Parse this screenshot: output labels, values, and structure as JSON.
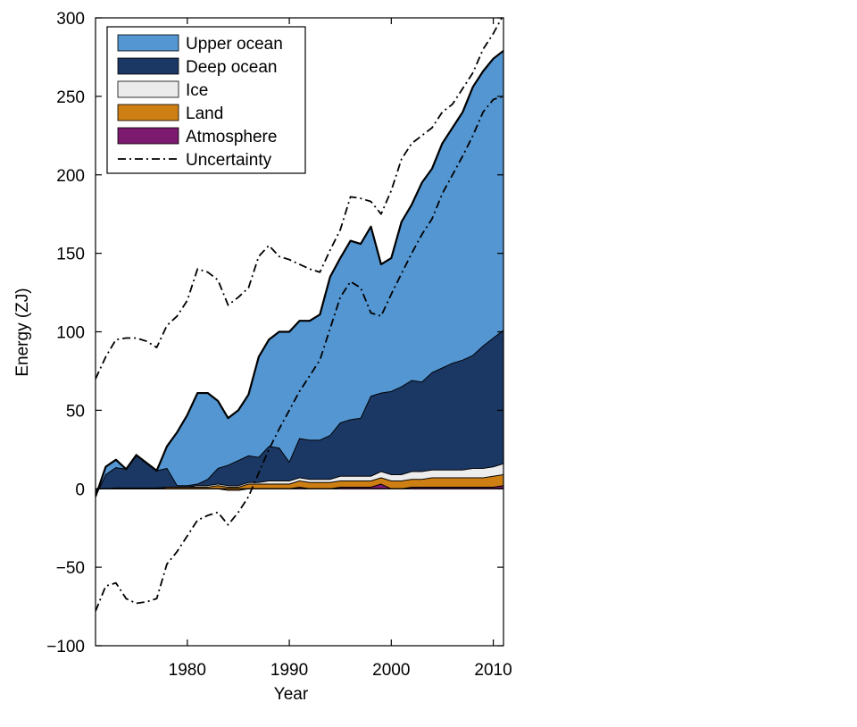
{
  "chart_data": {
    "type": "area",
    "stacked": true,
    "xlabel": "Year",
    "ylabel": "Energy (ZJ)",
    "xlim": [
      1971,
      2011
    ],
    "ylim": [
      -100,
      300
    ],
    "x_ticks": [
      1980,
      1990,
      2000,
      2010
    ],
    "y_ticks": [
      -100,
      -50,
      0,
      50,
      100,
      150,
      200,
      250,
      300
    ],
    "x_tick_labels": [
      "1980",
      "1990",
      "2000",
      "2010"
    ],
    "y_tick_labels": [
      "−100",
      "−50",
      "0",
      "50",
      "100",
      "150",
      "200",
      "250",
      "300"
    ],
    "grid": false,
    "legend_position": "top-left",
    "x": [
      1971,
      1972,
      1973,
      1974,
      1975,
      1976,
      1977,
      1978,
      1979,
      1980,
      1981,
      1982,
      1983,
      1984,
      1985,
      1986,
      1987,
      1988,
      1989,
      1990,
      1991,
      1992,
      1993,
      1994,
      1995,
      1996,
      1997,
      1998,
      1999,
      2000,
      2001,
      2002,
      2003,
      2004,
      2005,
      2006,
      2007,
      2008,
      2009,
      2010,
      2011
    ],
    "series": [
      {
        "name": "Atmosphere",
        "color": "#7b1a6e",
        "values": [
          0,
          0,
          0,
          0,
          0,
          0,
          0,
          0,
          0,
          0,
          0,
          0,
          0,
          -1,
          -1,
          0,
          0,
          0,
          0,
          0,
          1,
          0,
          0,
          0,
          1,
          1,
          1,
          1,
          3,
          0,
          0,
          1,
          1,
          1,
          1,
          1,
          1,
          1,
          1,
          1,
          2
        ]
      },
      {
        "name": "Land",
        "color": "#cd7f14",
        "values": [
          0,
          0,
          0.5,
          0.5,
          0.5,
          0.5,
          0.5,
          1,
          1,
          1,
          1,
          1,
          2,
          2,
          2,
          3,
          3,
          3,
          3,
          3,
          4,
          4,
          4,
          4,
          4,
          4,
          4,
          4,
          4,
          5,
          5,
          5,
          5,
          6,
          6,
          6,
          6,
          6,
          6,
          7,
          7
        ]
      },
      {
        "name": "Ice",
        "color": "#ececec",
        "values": [
          0,
          0,
          0,
          0,
          0,
          0,
          0,
          0,
          0,
          0,
          1,
          1,
          1,
          1,
          1,
          1,
          1,
          2,
          2,
          2,
          2,
          2,
          2,
          2,
          3,
          3,
          3,
          3,
          4,
          4,
          4,
          5,
          5,
          5,
          5,
          5,
          5,
          6,
          6,
          6,
          7
        ]
      },
      {
        "name": "Deep ocean",
        "color": "#1b3764",
        "values": [
          -5,
          9,
          13,
          12,
          21,
          16,
          11,
          12,
          1,
          1,
          1,
          4,
          10,
          13,
          16,
          17,
          16,
          22,
          21,
          12,
          25,
          25,
          25,
          28,
          34,
          36,
          37,
          51,
          50,
          53,
          56,
          58,
          57,
          62,
          65,
          68,
          70,
          72,
          78,
          82,
          85
        ]
      },
      {
        "name": "Upper ocean",
        "color": "#5496d1",
        "values": [
          0,
          5,
          5,
          0,
          0,
          0,
          0,
          14,
          34,
          45,
          58,
          55,
          43,
          30,
          32,
          39,
          64,
          68,
          74,
          83,
          75,
          76,
          80,
          101,
          105,
          114,
          111,
          108,
          82,
          85,
          105,
          112,
          127,
          130,
          143,
          150,
          158,
          171,
          175,
          178,
          178
        ]
      }
    ],
    "uncertainty": {
      "name": "Uncertainty",
      "upper": [
        70,
        84,
        95,
        96,
        96,
        94,
        90,
        104,
        110,
        120,
        140,
        138,
        133,
        117,
        122,
        128,
        148,
        155,
        148,
        146,
        143,
        140,
        138,
        152,
        165,
        186,
        185,
        183,
        175,
        190,
        210,
        220,
        225,
        230,
        240,
        245,
        255,
        265,
        280,
        290,
        302
      ],
      "lower": [
        -78,
        -62,
        -60,
        -70,
        -73,
        -72,
        -70,
        -48,
        -40,
        -30,
        -20,
        -17,
        -15,
        -23,
        -15,
        -5,
        10,
        25,
        38,
        50,
        62,
        72,
        82,
        102,
        122,
        132,
        128,
        112,
        110,
        124,
        137,
        150,
        162,
        172,
        188,
        200,
        212,
        225,
        240,
        248,
        250
      ]
    },
    "legend": [
      {
        "label": "Upper ocean",
        "kind": "patch",
        "color": "#5496d1"
      },
      {
        "label": "Deep ocean",
        "kind": "patch",
        "color": "#1b3764"
      },
      {
        "label": "Ice",
        "kind": "patch",
        "color": "#ececec"
      },
      {
        "label": "Land",
        "kind": "patch",
        "color": "#cd7f14"
      },
      {
        "label": "Atmosphere",
        "kind": "patch",
        "color": "#7b1a6e"
      },
      {
        "label": "Uncertainty",
        "kind": "dashdot",
        "color": "#000000"
      }
    ]
  }
}
